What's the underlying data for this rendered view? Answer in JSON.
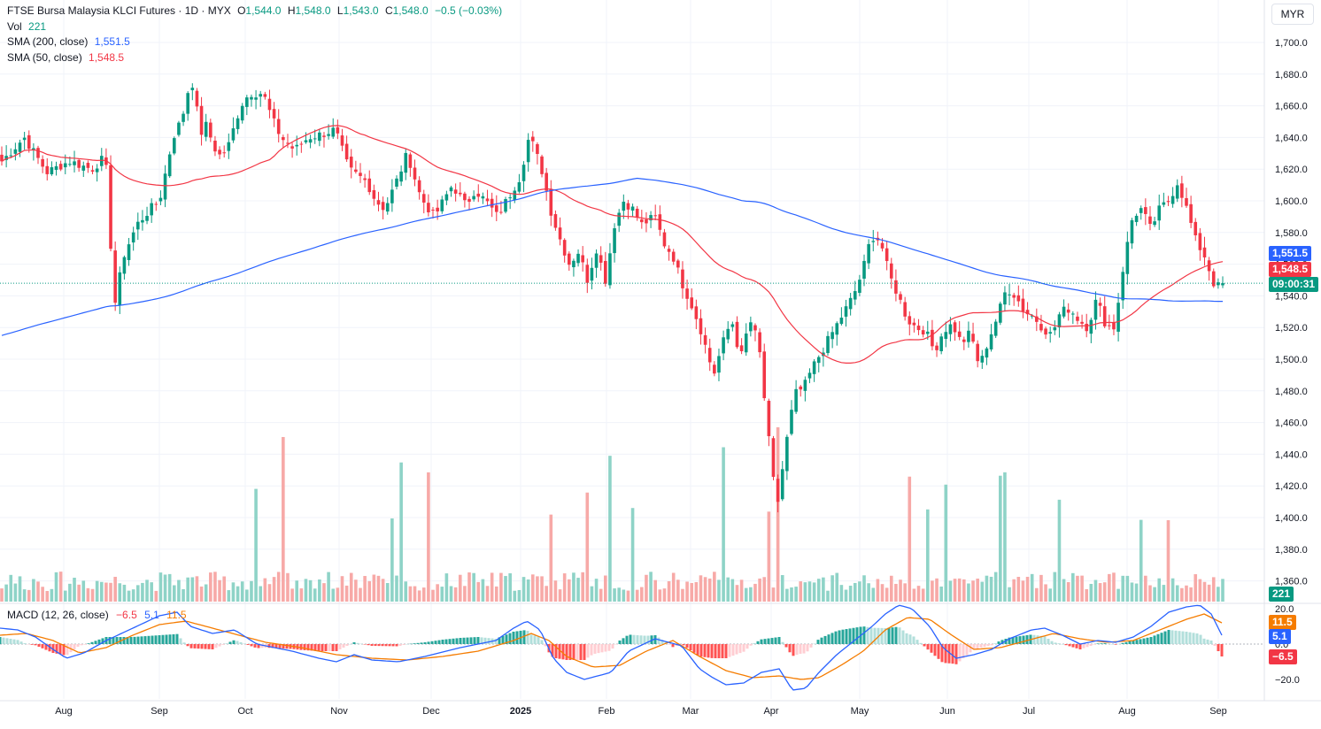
{
  "legend": {
    "symbol": "FTSE Bursa Malaysia KLCI Futures · 1D · MYX",
    "o_label": "O",
    "o_value": "1,544.0",
    "h_label": "H",
    "h_value": "1,548.0",
    "l_label": "L",
    "l_value": "1,543.0",
    "c_label": "C",
    "c_value": "1,548.0",
    "change": "−0.5 (−0.03%)",
    "vol_label": "Vol",
    "vol_value": "221",
    "sma200_label": "SMA (200, close)",
    "sma200_value": "1,551.5",
    "sma50_label": "SMA (50, close)",
    "sma50_value": "1,548.5"
  },
  "macd_legend": {
    "label": "MACD (12, 26, close)",
    "hist": "−6.5",
    "macd": "5.1",
    "signal": "11.5"
  },
  "currency": "MYR",
  "badges": {
    "sma200": "1,551.5",
    "sma50": "1,548.5",
    "countdown": "09:00:31",
    "volume": "221",
    "macd_signal": "11.5",
    "macd_line": "5.1",
    "macd_hist": "−6.5"
  },
  "colors": {
    "up": "#089981",
    "down": "#f23645",
    "vol_up": "#8ed3c7",
    "vol_down": "#f7a9a7",
    "sma200": "#2962ff",
    "sma50": "#f23645",
    "macd": "#2962ff",
    "signal": "#f57c00",
    "grid": "#f0f3fa",
    "price_line": "#089981"
  },
  "chart_data": {
    "type": "candlestick",
    "price_axis": {
      "ticks": [
        "1,360.0",
        "1,380.0",
        "1,400.0",
        "1,420.0",
        "1,440.0",
        "1,460.0",
        "1,480.0",
        "1,500.0",
        "1,520.0",
        "1,540.0",
        "1,560.0",
        "1,580.0",
        "1,600.0",
        "1,620.0",
        "1,640.0",
        "1,660.0",
        "1,680.0",
        "1,700.0"
      ],
      "range": [
        1346,
        1713
      ]
    },
    "macd_axis": {
      "ticks": [
        "20.0",
        "0.0",
        "−20.0"
      ],
      "range": [
        -26,
        24
      ]
    },
    "time_axis": [
      "Aug",
      "Sep",
      "Oct",
      "Nov",
      "Dec",
      "2025",
      "Feb",
      "Mar",
      "Apr",
      "May",
      "Jun",
      "Jul",
      "Aug",
      "Sep"
    ],
    "current_price": 1548.0,
    "waypoints": [
      [
        1545,
        1625
      ],
      [
        1550,
        1640
      ],
      [
        1555,
        1618
      ],
      [
        1560,
        1625
      ],
      [
        1565,
        1620
      ],
      [
        1568,
        1628
      ],
      [
        1570,
        1533
      ],
      [
        1572,
        1565
      ],
      [
        1575,
        1585
      ],
      [
        1578,
        1595
      ],
      [
        1580,
        1600
      ],
      [
        1583,
        1640
      ],
      [
        1585,
        1652
      ],
      [
        1587,
        1678
      ],
      [
        1588,
        1665
      ],
      [
        1589,
        1640
      ],
      [
        1590,
        1650
      ],
      [
        1593,
        1628
      ],
      [
        1595,
        1632
      ],
      [
        1598,
        1660
      ],
      [
        1600,
        1668
      ],
      [
        1603,
        1668
      ],
      [
        1605,
        1652
      ],
      [
        1607,
        1640
      ],
      [
        1610,
        1632
      ],
      [
        1613,
        1640
      ],
      [
        1616,
        1642
      ],
      [
        1619,
        1645
      ],
      [
        1622,
        1620
      ],
      [
        1626,
        1612
      ],
      [
        1628,
        1600
      ],
      [
        1630,
        1595
      ],
      [
        1633,
        1615
      ],
      [
        1635,
        1630
      ],
      [
        1638,
        1602
      ],
      [
        1641,
        1590
      ],
      [
        1643,
        1600
      ],
      [
        1645,
        1610
      ],
      [
        1648,
        1597
      ],
      [
        1650,
        1607
      ],
      [
        1653,
        1598
      ],
      [
        1655,
        1590
      ],
      [
        1658,
        1605
      ],
      [
        1660,
        1615
      ],
      [
        1662,
        1640
      ],
      [
        1663,
        1635
      ],
      [
        1665,
        1618
      ],
      [
        1667,
        1592
      ],
      [
        1669,
        1575
      ],
      [
        1671,
        1560
      ],
      [
        1673,
        1568
      ],
      [
        1675,
        1550
      ],
      [
        1677,
        1570
      ],
      [
        1679,
        1550
      ],
      [
        1681,
        1585
      ],
      [
        1683,
        1600
      ],
      [
        1685,
        1595
      ],
      [
        1687,
        1585
      ],
      [
        1690,
        1590
      ],
      [
        1692,
        1573
      ],
      [
        1694,
        1565
      ],
      [
        1696,
        1548
      ],
      [
        1698,
        1535
      ],
      [
        1700,
        1520
      ],
      [
        1703,
        1490
      ],
      [
        1705,
        1510
      ],
      [
        1707,
        1525
      ],
      [
        1709,
        1500
      ],
      [
        1711,
        1525
      ],
      [
        1713,
        1510
      ],
      [
        1715,
        1455
      ],
      [
        1717,
        1405
      ],
      [
        1719,
        1445
      ],
      [
        1721,
        1478
      ],
      [
        1723,
        1482
      ],
      [
        1725,
        1495
      ],
      [
        1728,
        1510
      ],
      [
        1730,
        1520
      ],
      [
        1732,
        1530
      ],
      [
        1734,
        1540
      ],
      [
        1736,
        1555
      ],
      [
        1738,
        1578
      ],
      [
        1740,
        1575
      ],
      [
        1742,
        1553
      ],
      [
        1744,
        1540
      ],
      [
        1746,
        1525
      ],
      [
        1748,
        1520
      ],
      [
        1750,
        1518
      ],
      [
        1752,
        1505
      ],
      [
        1754,
        1518
      ],
      [
        1756,
        1522
      ],
      [
        1758,
        1510
      ],
      [
        1760,
        1517
      ],
      [
        1762,
        1495
      ],
      [
        1764,
        1512
      ],
      [
        1766,
        1527
      ],
      [
        1768,
        1545
      ],
      [
        1770,
        1540
      ],
      [
        1772,
        1530
      ],
      [
        1774,
        1527
      ],
      [
        1776,
        1520
      ],
      [
        1778,
        1515
      ],
      [
        1780,
        1530
      ],
      [
        1782,
        1532
      ],
      [
        1784,
        1525
      ],
      [
        1786,
        1520
      ],
      [
        1788,
        1538
      ],
      [
        1790,
        1522
      ],
      [
        1792,
        1520
      ],
      [
        1794,
        1560
      ],
      [
        1796,
        1590
      ],
      [
        1798,
        1595
      ],
      [
        1800,
        1582
      ],
      [
        1802,
        1595
      ],
      [
        1804,
        1600
      ],
      [
        1806,
        1612
      ],
      [
        1808,
        1595
      ],
      [
        1810,
        1575
      ],
      [
        1812,
        1565
      ],
      [
        1814,
        1548
      ],
      [
        1815,
        1546
      ],
      [
        1816,
        1548
      ]
    ],
    "macd_waypoints": [
      [
        0,
        9
      ],
      [
        20,
        8
      ],
      [
        40,
        4
      ],
      [
        60,
        -3
      ],
      [
        75,
        -8
      ],
      [
        95,
        -5
      ],
      [
        120,
        2
      ],
      [
        150,
        9
      ],
      [
        180,
        16
      ],
      [
        200,
        18
      ],
      [
        215,
        10
      ],
      [
        240,
        6
      ],
      [
        265,
        8
      ],
      [
        290,
        0
      ],
      [
        330,
        -4
      ],
      [
        360,
        -8
      ],
      [
        380,
        -10
      ],
      [
        400,
        -6
      ],
      [
        420,
        -9
      ],
      [
        450,
        -10
      ],
      [
        480,
        -7
      ],
      [
        520,
        -2
      ],
      [
        560,
        2
      ],
      [
        580,
        9
      ],
      [
        595,
        13
      ],
      [
        610,
        8
      ],
      [
        625,
        -8
      ],
      [
        640,
        -16
      ],
      [
        660,
        -20
      ],
      [
        690,
        -16
      ],
      [
        710,
        -4
      ],
      [
        740,
        3
      ],
      [
        770,
        -1
      ],
      [
        790,
        -14
      ],
      [
        805,
        -19
      ],
      [
        820,
        -23
      ],
      [
        840,
        -22
      ],
      [
        860,
        -16
      ],
      [
        880,
        -14
      ],
      [
        895,
        -26
      ],
      [
        910,
        -25
      ],
      [
        925,
        -16
      ],
      [
        945,
        -6
      ],
      [
        965,
        2
      ],
      [
        985,
        10
      ],
      [
        1000,
        17
      ],
      [
        1015,
        22
      ],
      [
        1030,
        20
      ],
      [
        1050,
        10
      ],
      [
        1065,
        -2
      ],
      [
        1080,
        -8
      ],
      [
        1100,
        -6
      ],
      [
        1120,
        -3
      ],
      [
        1140,
        3
      ],
      [
        1165,
        8
      ],
      [
        1180,
        9
      ],
      [
        1200,
        5
      ],
      [
        1220,
        0
      ],
      [
        1240,
        2
      ],
      [
        1260,
        1
      ],
      [
        1280,
        4
      ],
      [
        1300,
        10
      ],
      [
        1320,
        18
      ],
      [
        1340,
        21
      ],
      [
        1355,
        22
      ],
      [
        1368,
        17
      ],
      [
        1380,
        5
      ]
    ],
    "signal_waypoints": [
      [
        0,
        5
      ],
      [
        30,
        6
      ],
      [
        60,
        2
      ],
      [
        90,
        -5
      ],
      [
        120,
        -2
      ],
      [
        150,
        5
      ],
      [
        180,
        11
      ],
      [
        210,
        13
      ],
      [
        240,
        9
      ],
      [
        270,
        5
      ],
      [
        300,
        1
      ],
      [
        340,
        -2
      ],
      [
        380,
        -6
      ],
      [
        420,
        -8
      ],
      [
        460,
        -9
      ],
      [
        500,
        -7
      ],
      [
        540,
        -4
      ],
      [
        580,
        2
      ],
      [
        600,
        6
      ],
      [
        620,
        2
      ],
      [
        640,
        -7
      ],
      [
        670,
        -13
      ],
      [
        700,
        -12
      ],
      [
        730,
        -4
      ],
      [
        760,
        2
      ],
      [
        790,
        -7
      ],
      [
        820,
        -15
      ],
      [
        850,
        -19
      ],
      [
        880,
        -18
      ],
      [
        905,
        -20
      ],
      [
        925,
        -19
      ],
      [
        950,
        -12
      ],
      [
        975,
        -4
      ],
      [
        1000,
        8
      ],
      [
        1025,
        15
      ],
      [
        1050,
        14
      ],
      [
        1075,
        5
      ],
      [
        1100,
        -3
      ],
      [
        1130,
        -2
      ],
      [
        1160,
        2
      ],
      [
        1190,
        6
      ],
      [
        1220,
        3
      ],
      [
        1250,
        1
      ],
      [
        1280,
        2
      ],
      [
        1310,
        8
      ],
      [
        1340,
        14
      ],
      [
        1360,
        17
      ],
      [
        1380,
        12
      ]
    ]
  }
}
